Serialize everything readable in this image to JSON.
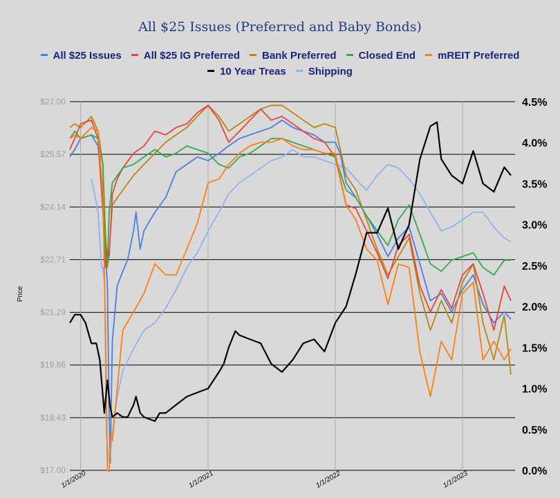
{
  "chart_data": {
    "type": "line",
    "title": "All $25 Issues (Preferred and Baby Bonds)",
    "ylabel": "Price",
    "y2label": "",
    "ylim": [
      17.0,
      27.0
    ],
    "y2lim": [
      0.0,
      4.5
    ],
    "xlim": [
      "2019-12-01",
      "2023-06-01"
    ],
    "yticks": [
      "$17.00",
      "$18.43",
      "$19.86",
      "$21.29",
      "$22.71",
      "$24.14",
      "$25.57",
      "$27.00"
    ],
    "y2ticks": [
      "0.0%",
      "0.5%",
      "1.0%",
      "1.5%",
      "2.0%",
      "2.5%",
      "3.0%",
      "3.5%",
      "4.0%",
      "4.5%"
    ],
    "xticks": [
      "1/1/2020",
      "1/1/2021",
      "1/1/2022",
      "1/1/2023"
    ],
    "grid": "horizontal",
    "legend_position": "top",
    "series": [
      {
        "name": "All $25 Issues",
        "color": "#4a7fe0",
        "axis": "left",
        "x": [
          "2019-12-01",
          "2019-12-15",
          "2020-01-01",
          "2020-02-01",
          "2020-02-20",
          "2020-03-05",
          "2020-03-12",
          "2020-03-18",
          "2020-03-23",
          "2020-03-26",
          "2020-04-01",
          "2020-04-15",
          "2020-05-01",
          "2020-05-15",
          "2020-06-01",
          "2020-06-08",
          "2020-06-20",
          "2020-07-01",
          "2020-08-01",
          "2020-09-01",
          "2020-10-01",
          "2020-11-01",
          "2020-12-01",
          "2021-01-01",
          "2021-02-01",
          "2021-03-01",
          "2021-04-01",
          "2021-05-01",
          "2021-06-01",
          "2021-07-01",
          "2021-08-01",
          "2021-09-01",
          "2021-10-01",
          "2021-11-01",
          "2021-12-01",
          "2022-01-01",
          "2022-01-15",
          "2022-02-01",
          "2022-03-01",
          "2022-04-01",
          "2022-05-01",
          "2022-06-01",
          "2022-07-01",
          "2022-08-01",
          "2022-09-01",
          "2022-10-01",
          "2022-11-01",
          "2022-12-01",
          "2023-01-01",
          "2023-02-01",
          "2023-03-01",
          "2023-04-01",
          "2023-05-01",
          "2023-05-20"
        ],
        "y": [
          25.5,
          25.7,
          26.0,
          26.1,
          25.8,
          24.5,
          23.0,
          22.0,
          18.5,
          17.2,
          20.5,
          22.0,
          22.4,
          22.7,
          23.5,
          24.0,
          23.0,
          23.5,
          24.0,
          24.4,
          25.1,
          25.3,
          25.5,
          25.4,
          25.6,
          25.8,
          26.0,
          26.1,
          26.2,
          26.3,
          26.5,
          26.3,
          26.2,
          26.1,
          25.9,
          25.9,
          25.6,
          24.8,
          24.4,
          23.9,
          23.4,
          22.8,
          23.3,
          23.6,
          22.6,
          21.6,
          21.8,
          21.3,
          21.9,
          22.3,
          21.5,
          21.0,
          21.3,
          21.1
        ]
      },
      {
        "name": "All $25 IG Preferred",
        "color": "#e8453c",
        "axis": "left",
        "x": [
          "2019-12-01",
          "2019-12-15",
          "2020-01-01",
          "2020-02-01",
          "2020-02-20",
          "2020-03-05",
          "2020-03-12",
          "2020-03-18",
          "2020-03-23",
          "2020-04-01",
          "2020-04-15",
          "2020-05-01",
          "2020-06-01",
          "2020-07-01",
          "2020-08-01",
          "2020-09-01",
          "2020-10-01",
          "2020-11-01",
          "2020-12-01",
          "2021-01-01",
          "2021-02-01",
          "2021-03-01",
          "2021-04-01",
          "2021-05-01",
          "2021-06-01",
          "2021-07-01",
          "2021-08-01",
          "2021-09-01",
          "2021-10-01",
          "2021-11-01",
          "2021-12-01",
          "2022-01-01",
          "2022-02-01",
          "2022-03-01",
          "2022-04-01",
          "2022-05-01",
          "2022-06-01",
          "2022-07-01",
          "2022-08-01",
          "2022-09-01",
          "2022-10-01",
          "2022-11-01",
          "2022-12-01",
          "2023-01-01",
          "2023-02-01",
          "2023-03-01",
          "2023-04-01",
          "2023-05-01",
          "2023-05-20"
        ],
        "y": [
          25.7,
          26.0,
          26.4,
          26.5,
          26.0,
          24.0,
          22.5,
          23.0,
          22.8,
          24.5,
          24.9,
          25.2,
          25.6,
          25.8,
          26.2,
          26.1,
          26.3,
          26.4,
          26.7,
          26.9,
          26.5,
          25.9,
          26.2,
          26.5,
          26.8,
          26.5,
          26.6,
          26.4,
          26.2,
          26.0,
          25.9,
          25.5,
          24.2,
          24.1,
          23.5,
          22.9,
          22.2,
          23.1,
          23.4,
          22.0,
          21.3,
          21.9,
          21.4,
          22.3,
          22.6,
          21.8,
          20.8,
          22.0,
          21.6
        ]
      },
      {
        "name": "Bank Preferred",
        "color": "#b8860b",
        "axis": "left",
        "x": [
          "2019-12-01",
          "2019-12-15",
          "2020-01-01",
          "2020-02-01",
          "2020-02-20",
          "2020-03-05",
          "2020-03-12",
          "2020-03-18",
          "2020-03-23",
          "2020-04-01",
          "2020-05-01",
          "2020-06-01",
          "2020-07-01",
          "2020-08-01",
          "2020-09-01",
          "2020-10-01",
          "2020-11-01",
          "2020-12-01",
          "2021-01-01",
          "2021-02-01",
          "2021-03-01",
          "2021-04-01",
          "2021-05-01",
          "2021-06-01",
          "2021-07-01",
          "2021-08-01",
          "2021-09-01",
          "2021-10-01",
          "2021-11-01",
          "2021-12-01",
          "2022-01-01",
          "2022-02-01",
          "2022-03-01",
          "2022-04-01",
          "2022-05-01",
          "2022-06-01",
          "2022-07-01",
          "2022-08-01",
          "2022-09-01",
          "2022-10-01",
          "2022-11-01",
          "2022-12-01",
          "2023-01-01",
          "2023-02-01",
          "2023-03-01",
          "2023-04-01",
          "2023-05-01",
          "2023-05-20"
        ],
        "y": [
          26.3,
          26.4,
          26.3,
          26.6,
          26.2,
          25.3,
          23.5,
          22.5,
          22.9,
          24.2,
          24.6,
          25.0,
          25.3,
          25.6,
          25.9,
          26.1,
          26.3,
          26.6,
          26.9,
          26.6,
          26.2,
          26.4,
          26.6,
          26.8,
          26.9,
          26.9,
          26.7,
          26.5,
          26.3,
          26.4,
          26.3,
          25.0,
          24.6,
          23.8,
          23.0,
          22.3,
          22.8,
          23.3,
          21.8,
          20.8,
          21.6,
          21.0,
          22.1,
          22.6,
          21.0,
          20.0,
          21.2,
          19.6
        ]
      },
      {
        "name": "Closed End",
        "color": "#34a853",
        "axis": "left",
        "x": [
          "2019-12-01",
          "2019-12-15",
          "2020-01-01",
          "2020-02-01",
          "2020-02-20",
          "2020-03-05",
          "2020-03-12",
          "2020-03-18",
          "2020-03-23",
          "2020-04-01",
          "2020-05-01",
          "2020-06-01",
          "2020-07-01",
          "2020-08-01",
          "2020-09-01",
          "2020-10-01",
          "2020-11-01",
          "2020-12-01",
          "2021-01-01",
          "2021-02-01",
          "2021-03-01",
          "2021-04-01",
          "2021-05-01",
          "2021-06-01",
          "2021-07-01",
          "2021-08-01",
          "2021-09-01",
          "2021-10-01",
          "2021-11-01",
          "2021-12-01",
          "2022-01-01",
          "2022-02-01",
          "2022-03-01",
          "2022-04-01",
          "2022-05-01",
          "2022-06-01",
          "2022-07-01",
          "2022-08-01",
          "2022-09-01",
          "2022-10-01",
          "2022-11-01",
          "2022-12-01",
          "2023-01-01",
          "2023-02-01",
          "2023-03-01",
          "2023-04-01",
          "2023-05-01",
          "2023-05-20"
        ],
        "y": [
          26.0,
          26.2,
          26.0,
          26.1,
          26.0,
          25.3,
          23.0,
          22.6,
          24.0,
          24.8,
          25.2,
          25.3,
          25.5,
          25.7,
          25.5,
          25.6,
          25.8,
          25.7,
          25.6,
          25.3,
          25.2,
          25.5,
          25.6,
          25.8,
          26.0,
          26.0,
          25.9,
          25.8,
          25.7,
          25.6,
          25.5,
          24.6,
          24.4,
          23.9,
          23.5,
          23.1,
          23.8,
          24.2,
          23.4,
          22.6,
          22.4,
          22.7,
          22.8,
          22.9,
          22.5,
          22.3,
          22.7,
          22.7
        ]
      },
      {
        "name": "mREIT Preferred",
        "color": "#ff7f0e",
        "axis": "left",
        "x": [
          "2019-12-01",
          "2019-12-15",
          "2020-01-01",
          "2020-02-01",
          "2020-02-20",
          "2020-03-05",
          "2020-03-12",
          "2020-03-18",
          "2020-03-23",
          "2020-03-28",
          "2020-04-01",
          "2020-04-15",
          "2020-05-01",
          "2020-06-01",
          "2020-07-01",
          "2020-08-01",
          "2020-09-01",
          "2020-10-01",
          "2020-11-01",
          "2020-12-01",
          "2021-01-01",
          "2021-02-01",
          "2021-03-01",
          "2021-04-01",
          "2021-05-01",
          "2021-06-01",
          "2021-07-01",
          "2021-08-01",
          "2021-09-01",
          "2021-10-01",
          "2021-11-01",
          "2021-12-01",
          "2022-01-01",
          "2022-02-01",
          "2022-03-01",
          "2022-04-01",
          "2022-05-01",
          "2022-06-01",
          "2022-07-01",
          "2022-08-01",
          "2022-09-01",
          "2022-10-01",
          "2022-11-01",
          "2022-12-01",
          "2023-01-01",
          "2023-02-01",
          "2023-03-01",
          "2023-04-01",
          "2023-05-01",
          "2023-05-20"
        ],
        "y": [
          26.0,
          26.1,
          26.0,
          26.3,
          26.2,
          24.5,
          21.0,
          17.0,
          16.5,
          18.0,
          17.8,
          19.2,
          20.8,
          21.3,
          21.8,
          22.6,
          22.3,
          22.3,
          23.0,
          23.7,
          24.8,
          24.9,
          25.3,
          25.6,
          25.8,
          25.9,
          25.9,
          26.0,
          25.8,
          25.7,
          25.7,
          25.6,
          25.6,
          24.2,
          23.8,
          23.0,
          22.7,
          21.5,
          22.6,
          22.5,
          20.2,
          19.0,
          20.5,
          20.0,
          21.8,
          22.1,
          20.0,
          20.5,
          20.0,
          20.3
        ]
      },
      {
        "name": "10 Year Treas",
        "color": "#000000",
        "axis": "right",
        "x": [
          "2019-12-01",
          "2019-12-15",
          "2020-01-01",
          "2020-01-15",
          "2020-02-01",
          "2020-02-15",
          "2020-02-25",
          "2020-03-05",
          "2020-03-09",
          "2020-03-18",
          "2020-03-25",
          "2020-04-01",
          "2020-04-15",
          "2020-05-01",
          "2020-05-15",
          "2020-06-01",
          "2020-06-08",
          "2020-06-20",
          "2020-07-01",
          "2020-08-01",
          "2020-08-15",
          "2020-09-01",
          "2020-10-01",
          "2020-11-01",
          "2020-12-01",
          "2021-01-01",
          "2021-02-01",
          "2021-02-15",
          "2021-03-01",
          "2021-03-20",
          "2021-04-01",
          "2021-05-01",
          "2021-06-01",
          "2021-07-01",
          "2021-08-01",
          "2021-09-01",
          "2021-10-01",
          "2021-11-01",
          "2021-12-01",
          "2022-01-01",
          "2022-02-01",
          "2022-03-01",
          "2022-04-01",
          "2022-05-01",
          "2022-06-01",
          "2022-07-01",
          "2022-08-01",
          "2022-09-01",
          "2022-10-01",
          "2022-10-20",
          "2022-11-01",
          "2022-12-01",
          "2023-01-01",
          "2023-02-01",
          "2023-03-01",
          "2023-04-01",
          "2023-05-01",
          "2023-05-20"
        ],
        "y": [
          1.8,
          1.9,
          1.9,
          1.8,
          1.55,
          1.55,
          1.35,
          0.9,
          0.7,
          1.1,
          0.8,
          0.65,
          0.7,
          0.65,
          0.65,
          0.8,
          0.9,
          0.7,
          0.65,
          0.6,
          0.7,
          0.7,
          0.8,
          0.9,
          0.95,
          1.0,
          1.2,
          1.3,
          1.5,
          1.7,
          1.65,
          1.6,
          1.55,
          1.3,
          1.2,
          1.35,
          1.55,
          1.6,
          1.45,
          1.8,
          2.0,
          2.4,
          2.9,
          2.9,
          3.2,
          2.7,
          3.0,
          3.8,
          4.2,
          4.25,
          3.8,
          3.6,
          3.5,
          3.9,
          3.5,
          3.4,
          3.7,
          3.6
        ]
      },
      {
        "name": "Shipping",
        "color": "#8fb3ef",
        "axis": "left",
        "x": [
          "2020-02-01",
          "2020-02-10",
          "2020-02-20",
          "2020-03-01",
          "2020-03-05",
          "2020-03-10",
          "2020-03-15",
          "2020-03-23",
          "2020-04-01",
          "2020-04-15",
          "2020-05-01",
          "2020-06-01",
          "2020-07-01",
          "2020-08-01",
          "2020-09-01",
          "2020-10-01",
          "2020-11-01",
          "2020-12-01",
          "2021-01-01",
          "2021-02-01",
          "2021-03-01",
          "2021-04-01",
          "2021-05-01",
          "2021-06-01",
          "2021-07-01",
          "2021-08-01",
          "2021-09-01",
          "2021-10-01",
          "2021-11-01",
          "2021-12-01",
          "2022-01-01",
          "2022-02-01",
          "2022-03-01",
          "2022-04-01",
          "2022-05-01",
          "2022-06-01",
          "2022-07-01",
          "2022-08-01",
          "2022-09-01",
          "2022-10-01",
          "2022-11-01",
          "2022-12-01",
          "2023-01-01",
          "2023-02-01",
          "2023-03-01",
          "2023-04-01",
          "2023-05-01",
          "2023-05-20"
        ],
        "y": [
          24.9,
          24.5,
          24.0,
          22.5,
          22.5,
          22.0,
          18.0,
          17.2,
          18.0,
          19.0,
          19.7,
          20.3,
          20.8,
          21.0,
          21.4,
          21.9,
          22.5,
          22.9,
          23.5,
          24.0,
          24.5,
          24.8,
          25.0,
          25.2,
          25.4,
          25.5,
          25.7,
          25.5,
          25.5,
          25.4,
          25.3,
          25.2,
          24.9,
          24.6,
          25.0,
          25.3,
          25.2,
          24.9,
          24.5,
          24.0,
          23.5,
          23.6,
          23.8,
          24.0,
          24.0,
          23.6,
          23.3,
          23.2
        ]
      }
    ]
  }
}
